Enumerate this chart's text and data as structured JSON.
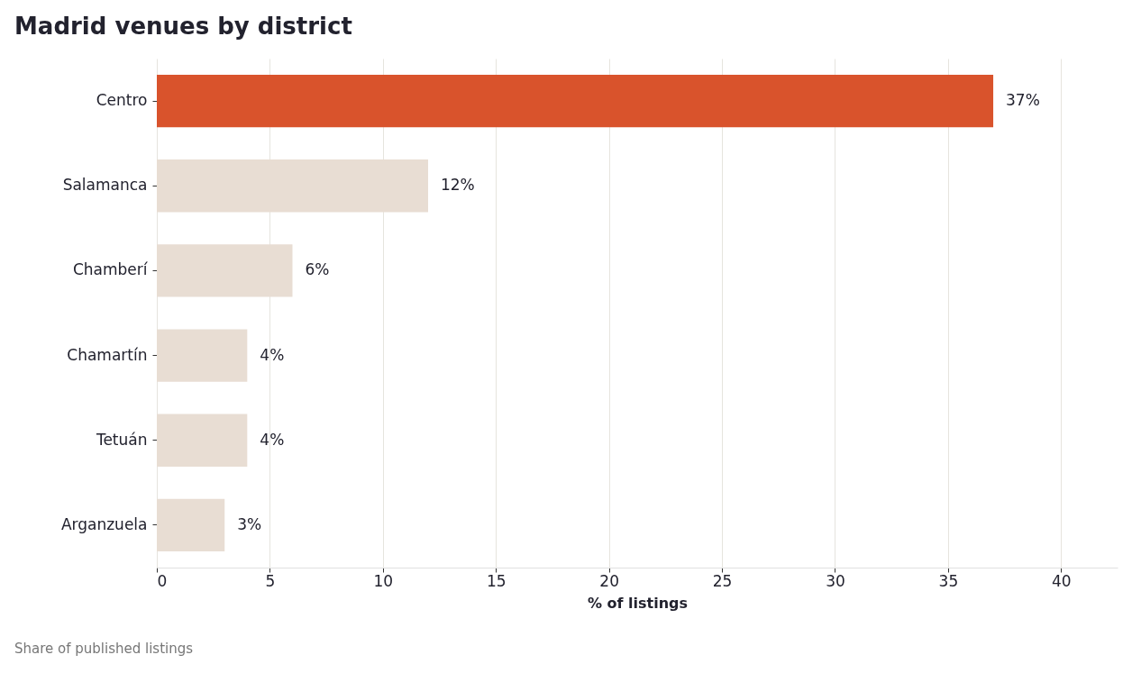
{
  "chart_data": {
    "type": "bar",
    "orientation": "horizontal",
    "title": "Madrid venues by district",
    "xlabel": "% of listings",
    "categories": [
      "Centro",
      "Salamanca",
      "Chamberí",
      "Chamartín",
      "Tetuán",
      "Arganzuela"
    ],
    "values": [
      37,
      12,
      6,
      4,
      4,
      3
    ],
    "colors": [
      "#d9532c",
      "#e8ddd3",
      "#e8ddd3",
      "#e8ddd3",
      "#e8ddd3",
      "#e8ddd3"
    ],
    "value_labels": [
      "37%",
      "12%",
      "6%",
      "4%",
      "4%",
      "3%"
    ],
    "xlim": [
      0,
      42.5
    ],
    "xticks": [
      0,
      5,
      10,
      15,
      20,
      25,
      30,
      35,
      40
    ],
    "grid": "x",
    "legend": false,
    "annotations": [
      "Share of published listings"
    ]
  }
}
